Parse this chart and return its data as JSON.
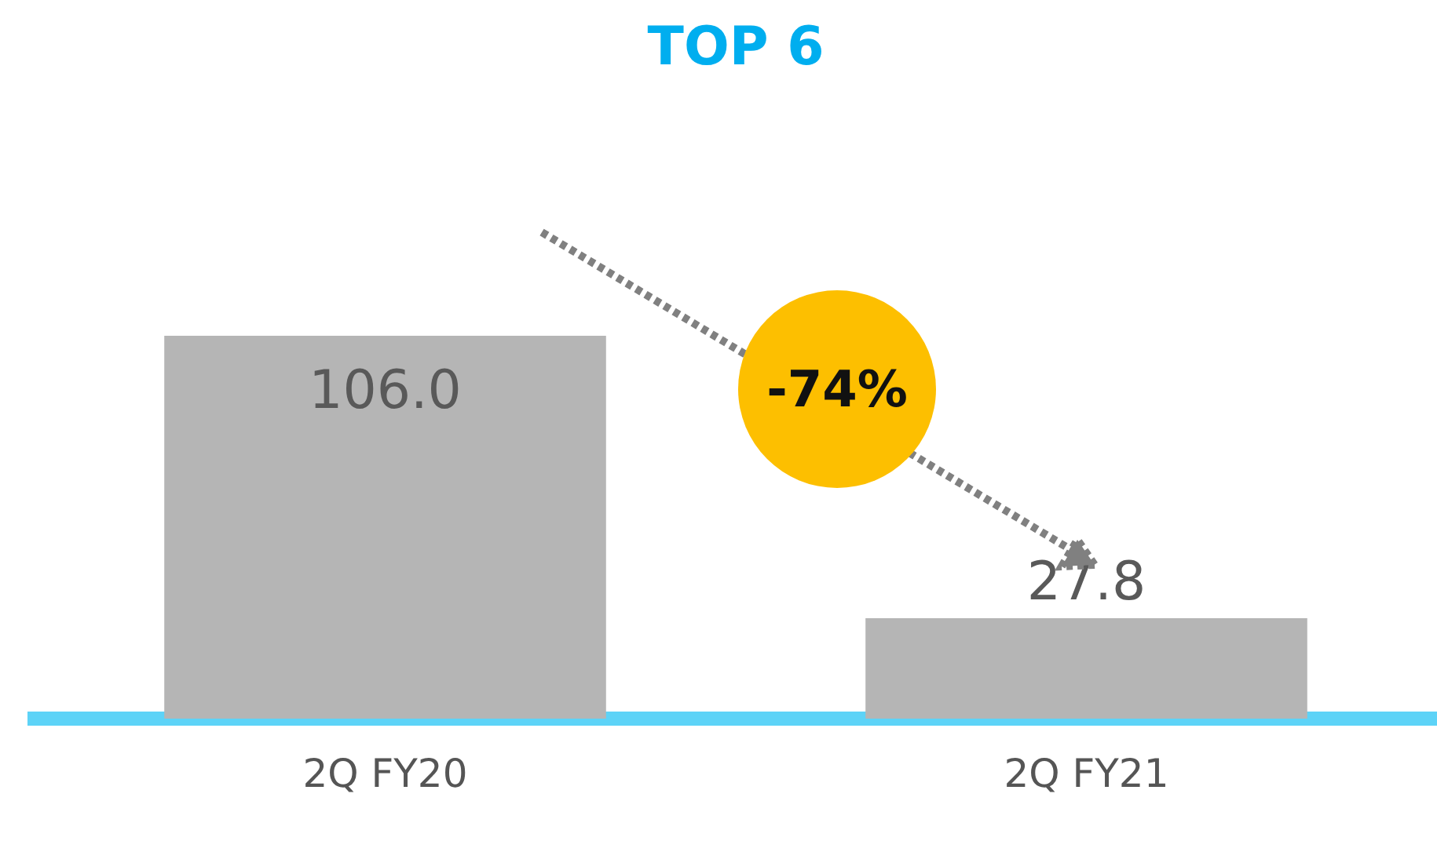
{
  "chart_data": {
    "type": "bar",
    "title": "TOP 6",
    "categories": [
      "2Q FY20",
      "2Q FY21"
    ],
    "values": [
      106.0,
      27.8
    ],
    "color": "#b5b5b5",
    "value_labels": [
      "106.0",
      "27.8"
    ],
    "grid": false,
    "legend": false,
    "annotations": [
      "-74%"
    ]
  }
}
